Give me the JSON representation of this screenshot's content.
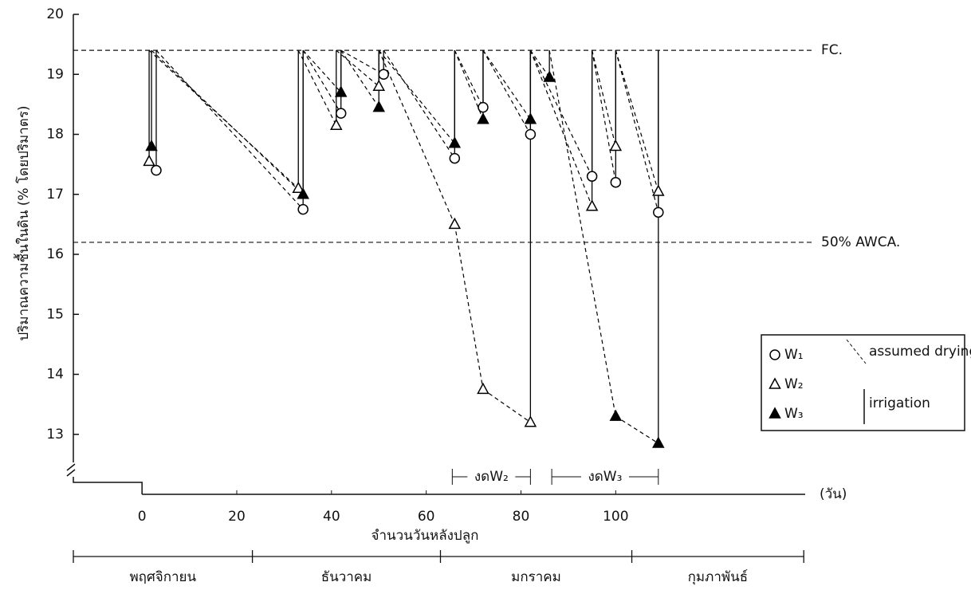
{
  "chart_data": {
    "type": "scatter",
    "y_label": "ปริมาณความชื้นในดิน (% โดยปริมาตร)",
    "x_label": "จำนวนวันหลังปลูก",
    "x_unit": "(วัน)",
    "xlim": [
      -14.5,
      140
    ],
    "xticks": [
      0,
      20,
      40,
      60,
      80,
      100
    ],
    "ylim": [
      12,
      20
    ],
    "yticks": [
      13,
      14,
      15,
      16,
      17,
      18,
      19,
      20
    ],
    "grid": false,
    "reference_lines": [
      {
        "value": 19.4,
        "label": "FC."
      },
      {
        "value": 16.2,
        "label": "50% AWCA."
      }
    ],
    "series": [
      {
        "name": "W₁",
        "marker": "circle",
        "color": "#000000",
        "x": [
          3,
          34,
          42,
          51,
          66,
          72,
          82,
          95,
          100,
          109
        ],
        "values": [
          17.4,
          16.75,
          18.35,
          19.0,
          17.6,
          18.45,
          18.0,
          17.3,
          17.2,
          16.7
        ]
      },
      {
        "name": "W₂",
        "marker": "triangle-open",
        "color": "#000000",
        "x": [
          1.5,
          33,
          41,
          50,
          66,
          72,
          82,
          95,
          100,
          109
        ],
        "values": [
          17.55,
          17.1,
          18.15,
          18.8,
          16.5,
          13.75,
          13.2,
          16.8,
          17.8,
          17.05
        ],
        "skip": {
          "label": "งดW₂",
          "x": [
            65.5,
            82
          ]
        }
      },
      {
        "name": "W₃",
        "marker": "triangle-filled",
        "color": "#000000",
        "x": [
          2,
          34,
          42,
          50,
          66,
          72,
          82,
          86,
          100,
          109
        ],
        "values": [
          17.8,
          17.0,
          18.7,
          18.45,
          17.85,
          18.25,
          18.25,
          18.95,
          13.3,
          12.85
        ],
        "skip": {
          "label": "งดW₃",
          "x": [
            86.5,
            109
          ]
        }
      }
    ],
    "legend_extra": [
      "assumed drying",
      "irrigation"
    ],
    "legend_position": "right",
    "months": [
      "พฤศจิกายน",
      "ธันวาคม",
      "มกราคม",
      "กุมภาพันธ์"
    ],
    "month_bounds": [
      -14.5,
      23.3,
      63,
      103.4,
      139.7
    ]
  }
}
